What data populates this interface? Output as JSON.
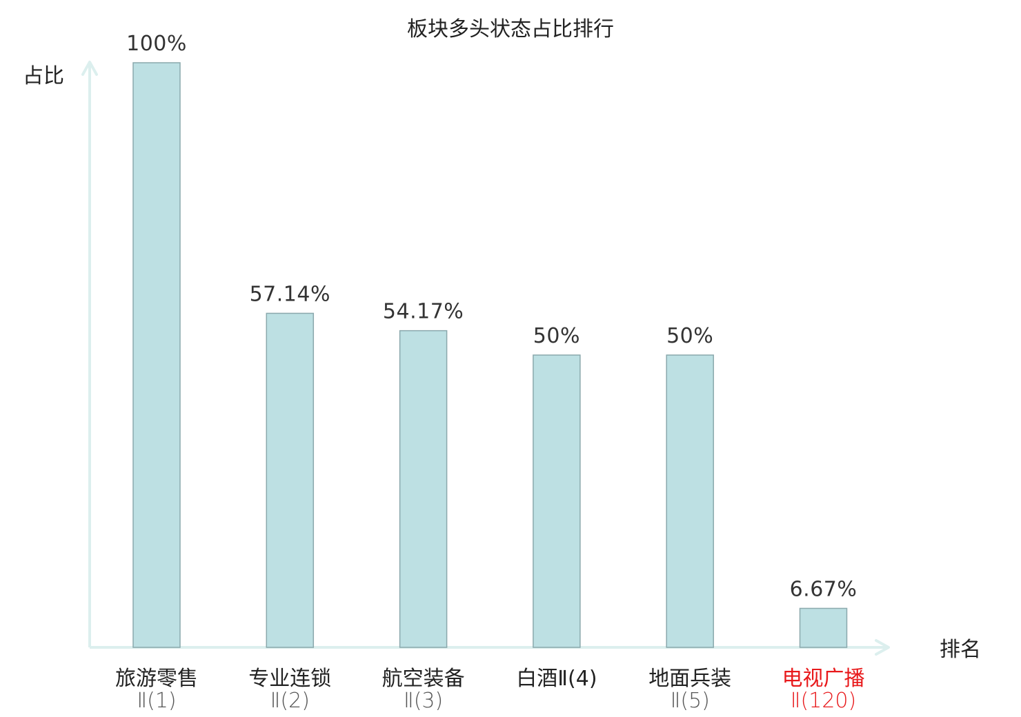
{
  "chart_data": {
    "type": "bar",
    "title": "板块多头状态占比排行",
    "ylabel": "占比",
    "xlabel": "排名",
    "ylim": [
      0,
      100
    ],
    "grid": false,
    "bar_color": "#bde0e3",
    "bar_border_color": "#8aa8ac",
    "axis_color": "#dcefee",
    "highlight_color": "#e8191b",
    "categories": [
      {
        "main": "旅游零售",
        "sub": "Ⅱ(1)",
        "highlight": false
      },
      {
        "main": "专业连锁",
        "sub": "Ⅱ(2)",
        "highlight": false
      },
      {
        "main": "航空装备",
        "sub": "Ⅱ(3)",
        "highlight": false
      },
      {
        "main": "白酒Ⅱ(4)",
        "sub": "",
        "highlight": false
      },
      {
        "main": "地面兵装",
        "sub": "Ⅱ(5)",
        "highlight": false
      },
      {
        "main": "电视广播",
        "sub": "Ⅱ(120)",
        "highlight": true
      }
    ],
    "values": [
      100,
      57.14,
      54.17,
      50,
      50,
      6.67
    ],
    "value_labels": [
      "100%",
      "57.14%",
      "54.17%",
      "50%",
      "50%",
      "6.67%"
    ]
  }
}
